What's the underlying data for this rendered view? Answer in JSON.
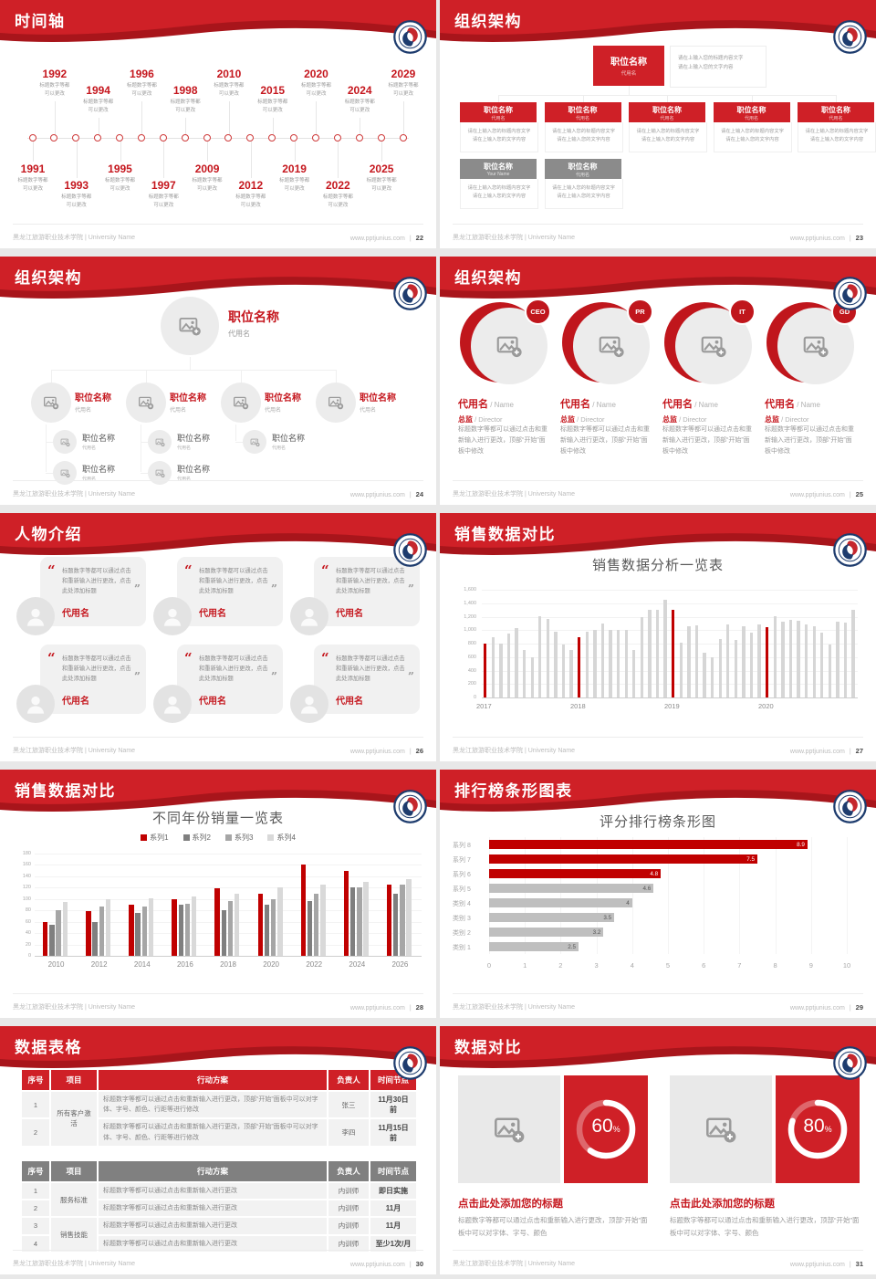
{
  "footer": {
    "school": "黑龙江旅游职业技术学院 | University Name",
    "site": "www.pptjunius.com",
    "separator": "|"
  },
  "colors": {
    "header_red": "#cf2027",
    "header_dark_red": "#a8151b",
    "accent_red": "#c5171e",
    "chart_red": "#c00000",
    "chart_gray": "#bfbfbf"
  },
  "slides": {
    "timeline": {
      "title": "时间轴",
      "page": "22",
      "caption_line1": "标题数字等都",
      "caption_line2": "可以更改",
      "points": [
        {
          "year": "1991",
          "side": "bottom",
          "far": false
        },
        {
          "year": "1992",
          "side": "top",
          "far": true
        },
        {
          "year": "1993",
          "side": "bottom",
          "far": true
        },
        {
          "year": "1994",
          "side": "top",
          "far": false
        },
        {
          "year": "1995",
          "side": "bottom",
          "far": false
        },
        {
          "year": "1996",
          "side": "top",
          "far": true
        },
        {
          "year": "1997",
          "side": "bottom",
          "far": true
        },
        {
          "year": "1998",
          "side": "top",
          "far": false
        },
        {
          "year": "2009",
          "side": "bottom",
          "far": false
        },
        {
          "year": "2010",
          "side": "top",
          "far": true
        },
        {
          "year": "2012",
          "side": "bottom",
          "far": true
        },
        {
          "year": "2015",
          "side": "top",
          "far": false
        },
        {
          "year": "2019",
          "side": "bottom",
          "far": false
        },
        {
          "year": "2020",
          "side": "top",
          "far": true
        },
        {
          "year": "2022",
          "side": "bottom",
          "far": true
        },
        {
          "year": "2024",
          "side": "top",
          "far": false
        },
        {
          "year": "2025",
          "side": "bottom",
          "far": false
        },
        {
          "year": "2029",
          "side": "top",
          "far": true
        }
      ]
    },
    "org_boxes": {
      "title": "组织架构",
      "page": "23",
      "root": {
        "title": "职位名称",
        "subtitle": "代用名"
      },
      "root_desc": [
        "请在上输入您的标题内容文字",
        "请在上输入您的文字内容"
      ],
      "node_desc": [
        "请在上输入您的标题内容文字",
        "请在上输入您的文字内容"
      ],
      "red_nodes": [
        {
          "title": "职位名称",
          "subtitle": "代用名"
        },
        {
          "title": "职位名称",
          "subtitle": "代用名"
        },
        {
          "title": "职位名称",
          "subtitle": "代用名"
        },
        {
          "title": "职位名称",
          "subtitle": "代用名"
        },
        {
          "title": "职位名称",
          "subtitle": "代用名"
        }
      ],
      "gray_nodes": [
        {
          "title": "职位名称",
          "subtitle": "Your Name"
        },
        {
          "title": "职位名称",
          "subtitle": "代用名"
        }
      ]
    },
    "org_photo": {
      "title": "组织架构",
      "page": "24",
      "root": {
        "title": "职位名称",
        "subtitle": "代用名"
      },
      "branches": [
        {
          "title": "职位名称",
          "subtitle": "代用名",
          "children": [
            {
              "title": "职位名称",
              "subtitle": "代用名"
            },
            {
              "title": "职位名称",
              "subtitle": "代用名"
            }
          ]
        },
        {
          "title": "职位名称",
          "subtitle": "代用名",
          "children": [
            {
              "title": "职位名称",
              "subtitle": "代用名"
            },
            {
              "title": "职位名称",
              "subtitle": "代用名"
            }
          ]
        },
        {
          "title": "职位名称",
          "subtitle": "代用名",
          "children": [
            {
              "title": "职位名称",
              "subtitle": "代用名"
            }
          ]
        },
        {
          "title": "职位名称",
          "subtitle": "代用名",
          "children": []
        }
      ]
    },
    "team": {
      "title": "组织架构",
      "page": "25",
      "cards": [
        {
          "badge": "CEO",
          "name": "代用名",
          "name_en": "Name",
          "role": "总监",
          "role_en": "Director",
          "desc": "标题数字等都可以通过点击和重新输入进行更改，顶部“开始”面板中修改"
        },
        {
          "badge": "PR",
          "name": "代用名",
          "name_en": "Name",
          "role": "总监",
          "role_en": "Director",
          "desc": "标题数字等都可以通过点击和重新输入进行更改，顶部“开始”面板中修改"
        },
        {
          "badge": "IT",
          "name": "代用名",
          "name_en": "Name",
          "role": "总监",
          "role_en": "Director",
          "desc": "标题数字等都可以通过点击和重新输入进行更改，顶部“开始”面板中修改"
        },
        {
          "badge": "GD",
          "name": "代用名",
          "name_en": "Name",
          "role": "总监",
          "role_en": "Director",
          "desc": "标题数字等都可以通过点击和重新输入进行更改，顶部“开始”面板中修改"
        }
      ]
    },
    "people": {
      "title": "人物介绍",
      "page": "26",
      "cards": [
        {
          "quote": "标题数字等都可以通过点击和重新输入进行更改，点击此处添加标题",
          "name": "代用名"
        },
        {
          "quote": "标题数字等都可以通过点击和重新输入进行更改，点击此处添加标题",
          "name": "代用名"
        },
        {
          "quote": "标题数字等都可以通过点击和重新输入进行更改，点击此处添加标题",
          "name": "代用名"
        },
        {
          "quote": "标题数字等都可以通过点击和重新输入进行更改，点击此处添加标题",
          "name": "代用名"
        },
        {
          "quote": "标题数字等都可以通过点击和重新输入进行更改，点击此处添加标题",
          "name": "代用名"
        },
        {
          "quote": "标题数字等都可以通过点击和重新输入进行更改，点击此处添加标题",
          "name": "代用名"
        }
      ]
    },
    "sales_monthly": {
      "title": "销售数据对比",
      "page": "27"
    },
    "sales_yearly": {
      "title": "销售数据对比",
      "page": "28"
    },
    "ranking": {
      "title": "排行榜条形图表",
      "page": "29"
    },
    "tables": {
      "title": "数据表格",
      "page": "30",
      "table1": {
        "headers": [
          "序号",
          "项目",
          "行动方案",
          "负责人",
          "时间节点"
        ],
        "project": "所有客户激活",
        "rows": [
          {
            "no": "1",
            "action": "标题数字等都可以通过点击和重新输入进行更改，顶部“开始”面板中可以对字体、字号、颜色、行距等进行修改",
            "owner": "张三",
            "time": "11月30日前"
          },
          {
            "no": "2",
            "action": "标题数字等都可以通过点击和重新输入进行更改，顶部“开始”面板中可以对字体、字号、颜色、行距等进行修改",
            "owner": "李四",
            "time": "11月15日前"
          }
        ]
      },
      "table2": {
        "headers": [
          "序号",
          "项目",
          "行动方案",
          "负责人",
          "时间节点"
        ],
        "groups": [
          {
            "project": "服务标准",
            "rows": [
              {
                "no": "1",
                "action": "标题数字等都可以通过点击和重新输入进行更改",
                "owner": "内训师",
                "time": "即日实施"
              },
              {
                "no": "2",
                "action": "标题数字等都可以通过点击和重新输入进行更改",
                "owner": "内训师",
                "time": "11月"
              }
            ]
          },
          {
            "project": "销售技能",
            "rows": [
              {
                "no": "3",
                "action": "标题数字等都可以通过点击和重新输入进行更改",
                "owner": "内训师",
                "time": "11月"
              },
              {
                "no": "4",
                "action": "标题数字等都可以通过点击和重新输入进行更改",
                "owner": "内训师",
                "time": "至少1次/月"
              }
            ]
          }
        ]
      }
    },
    "compare": {
      "title": "数据对比",
      "page": "31",
      "cards": [
        {
          "percent": 60,
          "percent_label": "60",
          "percent_sign": "%",
          "heading": "点击此处添加您的标题",
          "desc": "标题数字等都可以通过点击和重新输入进行更改，顶部“开始”面板中可以对字体、字号、颜色"
        },
        {
          "percent": 80,
          "percent_label": "80",
          "percent_sign": "%",
          "heading": "点击此处添加您的标题",
          "desc": "标题数字等都可以通过点击和重新输入进行更改，顶部“开始”面板中可以对字体、字号、颜色"
        }
      ]
    }
  },
  "chart_data": [
    {
      "id": "sales_monthly",
      "type": "bar",
      "title": "销售数据分析一览表",
      "xlabel": "",
      "ylabel": "",
      "ylim": [
        0,
        1600
      ],
      "ytick_step": 200,
      "grid": true,
      "x_tick_labels": [
        "2017",
        "2018",
        "2019",
        "2020"
      ],
      "x_tick_indices": [
        0,
        12,
        24,
        36
      ],
      "bar_color": "#d6d6d6",
      "highlight_color": "#c00000",
      "highlight_indices": [
        0,
        12,
        24,
        36
      ],
      "values": [
        800,
        900,
        800,
        950,
        1030,
        700,
        600,
        1210,
        1160,
        980,
        780,
        700,
        900,
        980,
        1000,
        1100,
        1000,
        1000,
        1010,
        700,
        1200,
        1300,
        1300,
        1450,
        1300,
        810,
        1060,
        1070,
        670,
        590,
        870,
        1080,
        860,
        1060,
        960,
        1080,
        1050,
        1210,
        1130,
        1150,
        1140,
        1080,
        1060,
        960,
        780,
        1130,
        1110,
        1300
      ]
    },
    {
      "id": "sales_yearly",
      "type": "bar",
      "title": "不同年份销量一览表",
      "categories": [
        "2010",
        "2012",
        "2014",
        "2016",
        "2018",
        "2020",
        "2022",
        "2024",
        "2026"
      ],
      "ylim": [
        0,
        180
      ],
      "ytick_step": 20,
      "grid": true,
      "legend_position": "top",
      "series": [
        {
          "name": "系列1",
          "color": "#c00000",
          "values": [
            60,
            79,
            90,
            100,
            119,
            110,
            160,
            150,
            125
          ]
        },
        {
          "name": "系列2",
          "color": "#7f7f7f",
          "values": [
            55,
            60,
            75,
            90,
            80,
            90,
            96,
            120,
            110
          ]
        },
        {
          "name": "系列3",
          "color": "#a6a6a6",
          "values": [
            80,
            86,
            87,
            92,
            97,
            100,
            110,
            120,
            125
          ]
        },
        {
          "name": "系列4",
          "color": "#d9d9d9",
          "values": [
            95,
            99,
            101,
            104,
            110,
            120,
            125,
            130,
            135
          ]
        }
      ]
    },
    {
      "id": "ranking",
      "type": "bar-horizontal",
      "title": "评分排行榜条形图",
      "categories": [
        "系列 8",
        "系列 7",
        "系列 6",
        "系列 5",
        "类别 4",
        "类别 3",
        "类别 2",
        "类别 1"
      ],
      "values": [
        8.9,
        7.5,
        4.8,
        4.6,
        4,
        3.5,
        3.2,
        2.5
      ],
      "value_labels": [
        "8.9",
        "7.5",
        "4.8",
        "4.6",
        "4",
        "3.5",
        "3.2",
        "2.5"
      ],
      "colors": [
        "#c00000",
        "#c00000",
        "#c00000",
        "#bfbfbf",
        "#bfbfbf",
        "#bfbfbf",
        "#bfbfbf",
        "#bfbfbf"
      ],
      "xlim": [
        0,
        10
      ],
      "xtick_step": 1,
      "grid": true
    },
    {
      "id": "compare_gauges",
      "type": "pie",
      "values": [
        60,
        80
      ],
      "labels": [
        "60%",
        "80%"
      ]
    }
  ]
}
